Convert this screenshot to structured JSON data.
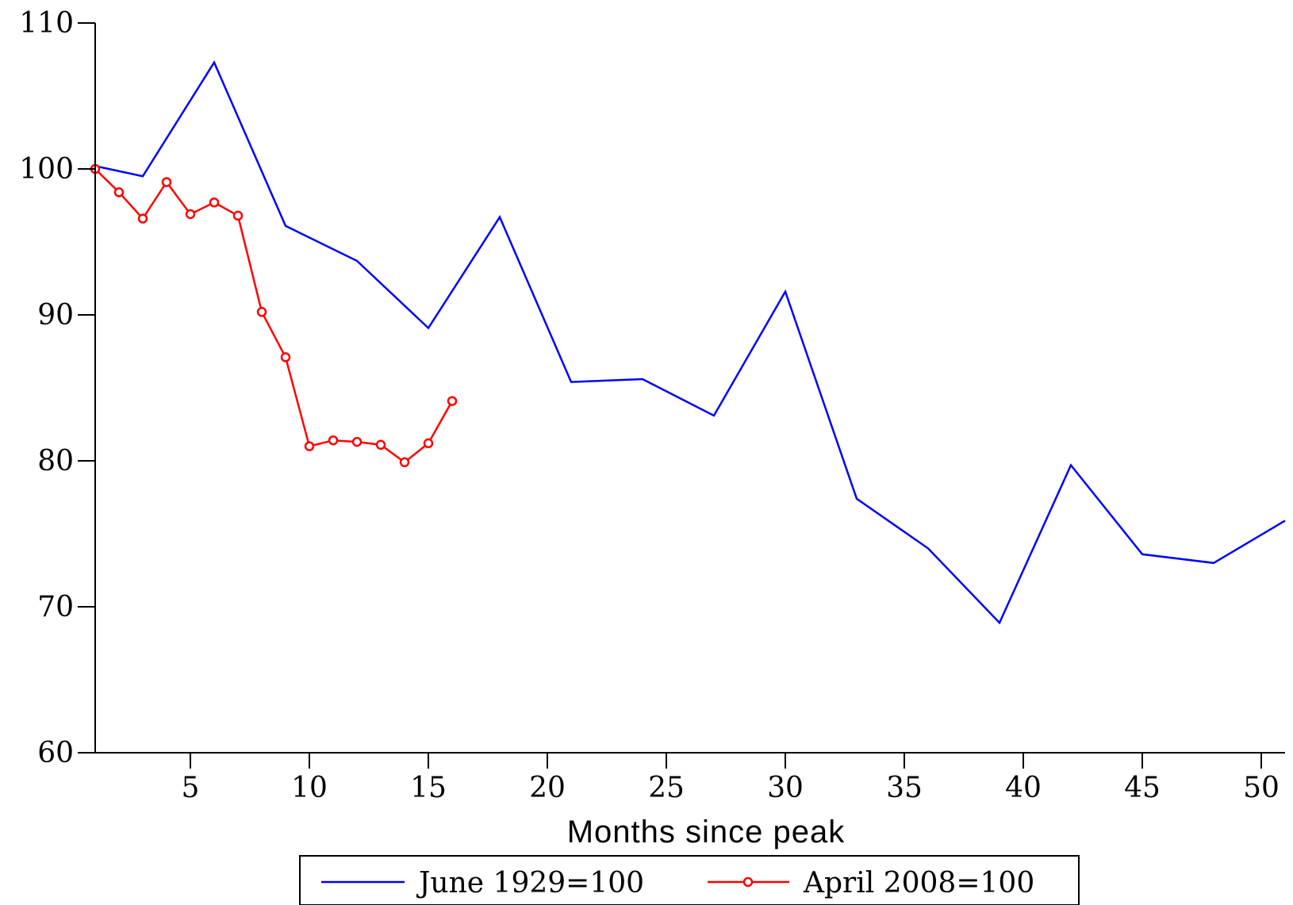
{
  "chart_data": {
    "type": "line",
    "title": "",
    "xlabel": "Months since peak",
    "ylabel": "",
    "xlim": [
      1,
      51
    ],
    "ylim": [
      60,
      110
    ],
    "x_ticks": [
      5,
      10,
      15,
      20,
      25,
      30,
      35,
      40,
      45,
      50
    ],
    "y_ticks": [
      60,
      70,
      80,
      90,
      100,
      110
    ],
    "grid": false,
    "legend_position": "bottom",
    "series": [
      {
        "name": "June 1929=100",
        "color": "#0000ff",
        "marker": "none",
        "x": [
          1,
          3,
          6,
          9,
          12,
          15,
          18,
          21,
          24,
          27,
          30,
          33,
          36,
          39,
          42,
          45,
          48,
          51
        ],
        "y": [
          100.2,
          99.5,
          107.3,
          96.1,
          93.7,
          89.1,
          96.7,
          85.4,
          85.6,
          83.1,
          91.6,
          77.4,
          74.0,
          68.9,
          79.7,
          73.6,
          73.0,
          75.9
        ]
      },
      {
        "name": "April 2008=100",
        "color": "#ff0000",
        "marker": "circle",
        "x": [
          1,
          2,
          3,
          4,
          5,
          6,
          7,
          8,
          9,
          10,
          11,
          12,
          13,
          14,
          15,
          16
        ],
        "y": [
          100.0,
          98.4,
          96.6,
          99.1,
          96.9,
          97.7,
          96.8,
          90.2,
          87.1,
          81.0,
          81.4,
          81.3,
          81.1,
          79.9,
          81.2,
          84.1
        ]
      }
    ]
  }
}
